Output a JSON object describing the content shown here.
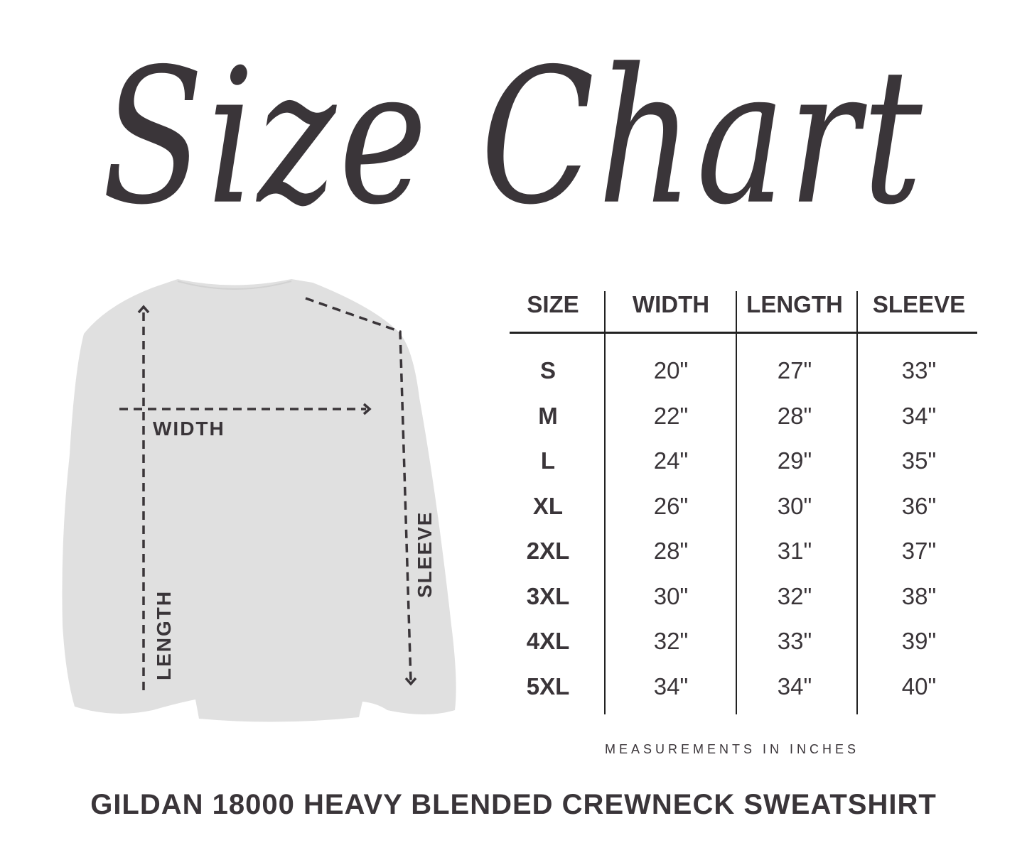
{
  "title": "Size Chart",
  "diagram": {
    "labels": {
      "width": "WIDTH",
      "length": "LENGTH",
      "sleeve": "SLEEVE"
    },
    "garment_color": "#e0e0e0",
    "ink_color": "#3a3539"
  },
  "table": {
    "headers": [
      "SIZE",
      "WIDTH",
      "LENGTH",
      "SLEEVE"
    ],
    "rows": [
      [
        "S",
        "20\"",
        "27\"",
        "33\""
      ],
      [
        "M",
        "22\"",
        "28\"",
        "34\""
      ],
      [
        "L",
        "24\"",
        "29\"",
        "35\""
      ],
      [
        "XL",
        "26\"",
        "30\"",
        "36\""
      ],
      [
        "2XL",
        "28\"",
        "31\"",
        "37\""
      ],
      [
        "3XL",
        "30\"",
        "32\"",
        "38\""
      ],
      [
        "4XL",
        "32\"",
        "33\"",
        "39\""
      ],
      [
        "5XL",
        "34\"",
        "34\"",
        "40\""
      ]
    ]
  },
  "note": "MEASUREMENTS IN INCHES",
  "product": "GILDAN 18000 HEAVY BLENDED CREWNECK SWEATSHIRT"
}
